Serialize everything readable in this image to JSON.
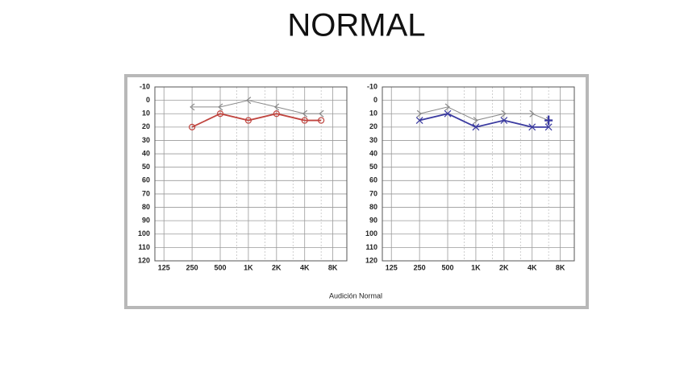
{
  "title": "NORMAL",
  "caption": "Audición Normal",
  "chart_data": [
    {
      "type": "line",
      "x": [
        250,
        500,
        1000,
        2000,
        4000,
        6000
      ],
      "xscale": "log",
      "xlim": [
        100,
        11300
      ],
      "xticks": [
        125,
        250,
        500,
        {
          "value": 1000,
          "label": "1K"
        },
        {
          "value": 2000,
          "label": "2K"
        },
        {
          "value": 4000,
          "label": "4K"
        },
        {
          "value": 8000,
          "label": "8K"
        }
      ],
      "minor_xgrid": [
        750,
        1500,
        3000,
        6000
      ],
      "ylim": [
        -10,
        120
      ],
      "y_reversed": true,
      "yticks": [
        -10,
        0,
        10,
        20,
        30,
        40,
        50,
        60,
        70,
        80,
        90,
        100,
        110,
        120
      ],
      "grid": true,
      "series": [
        {
          "color": "#8a8a8a",
          "marker": "bracket-left",
          "values": [
            5,
            5,
            0,
            5,
            10,
            10
          ]
        },
        {
          "color": "#c0453f",
          "marker": "circle",
          "values": [
            20,
            10,
            15,
            10,
            15,
            15
          ]
        }
      ]
    },
    {
      "type": "line",
      "x": [
        250,
        500,
        1000,
        2000,
        4000,
        6000
      ],
      "xscale": "log",
      "xlim": [
        100,
        11300
      ],
      "xticks": [
        125,
        250,
        500,
        {
          "value": 1000,
          "label": "1K"
        },
        {
          "value": 2000,
          "label": "2K"
        },
        {
          "value": 4000,
          "label": "4K"
        },
        {
          "value": 8000,
          "label": "8K"
        }
      ],
      "minor_xgrid": [
        750,
        1500,
        3000,
        6000
      ],
      "ylim": [
        -10,
        120
      ],
      "y_reversed": true,
      "yticks": [
        -10,
        0,
        10,
        20,
        30,
        40,
        50,
        60,
        70,
        80,
        90,
        100,
        110,
        120
      ],
      "grid": true,
      "series": [
        {
          "color": "#8a8a8a",
          "marker": "bracket-right",
          "values": [
            10,
            5,
            15,
            10,
            10,
            15
          ]
        },
        {
          "color": "#3a3aa0",
          "marker": "x",
          "values": [
            15,
            10,
            20,
            15,
            20,
            20
          ]
        },
        {
          "color": "#3a3aa0",
          "marker": "plus",
          "line": false,
          "x": [
            6000
          ],
          "values": [
            15
          ]
        }
      ]
    }
  ]
}
